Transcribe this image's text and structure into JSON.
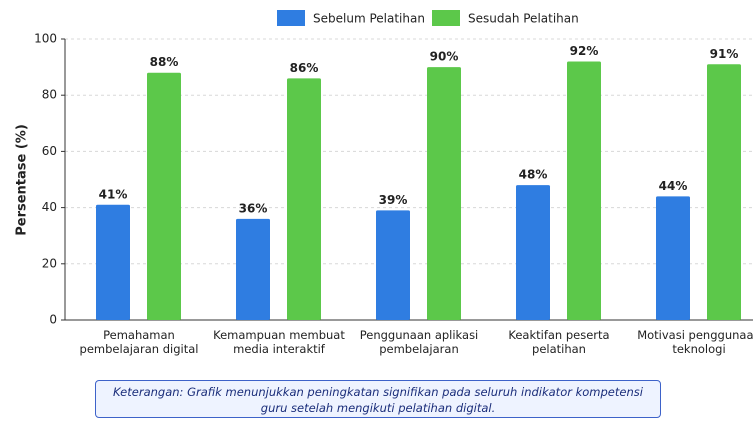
{
  "chart_data": {
    "type": "bar",
    "categories": [
      "Pemahaman pembelajaran digital",
      "Kemampuan membuat media interaktif",
      "Penggunaan aplikasi pembelajaran",
      "Keaktifan peserta pelatihan",
      "Motivasi penggunaan teknologi"
    ],
    "series": [
      {
        "name": "Sebelum Pelatihan",
        "color": "#2f7de1",
        "values": [
          41,
          36,
          39,
          48,
          44
        ],
        "value_labels": [
          "41%",
          "36%",
          "39%",
          "48%",
          "44%"
        ]
      },
      {
        "name": "Sesudah Pelatihan",
        "color": "#5cc84a",
        "values": [
          88,
          86,
          90,
          92,
          91
        ],
        "value_labels": [
          "88%",
          "86%",
          "90%",
          "92%",
          "91%"
        ]
      }
    ],
    "ylabel": "Persentase (%)",
    "ylim": [
      0,
      100
    ],
    "yticks": [
      0,
      20,
      40,
      60,
      80,
      100
    ],
    "grid": true,
    "legend": "top",
    "note": "Keterangan: Grafik menunjukkan peningkatan signifikan pada seluruh indikator kompetensi guru setelah mengikuti pelatihan digital."
  }
}
